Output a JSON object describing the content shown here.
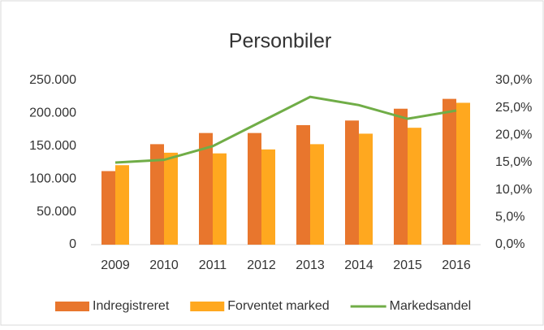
{
  "chart_data": {
    "type": "bar",
    "title": "Personbiler",
    "categories": [
      "2009",
      "2010",
      "2011",
      "2012",
      "2013",
      "2014",
      "2015",
      "2016"
    ],
    "series": [
      {
        "name": "Indregistreret",
        "color": "#e8762d",
        "values": [
          112000,
          153000,
          170000,
          170000,
          182000,
          189000,
          207000,
          222000
        ]
      },
      {
        "name": "Forventet marked",
        "color": "#ffa81f",
        "values": [
          121000,
          140000,
          139000,
          145000,
          153000,
          169000,
          178000,
          216000
        ]
      },
      {
        "name": "Markedsandel",
        "type": "line",
        "axis": "y2",
        "color": "#70ad47",
        "values": [
          15,
          15.5,
          18,
          22.5,
          27,
          25.5,
          23,
          24.5
        ]
      }
    ],
    "ylim": [
      0,
      250000
    ],
    "yticks": [
      0,
      {
        "value": 50000,
        "label": "50.000"
      },
      {
        "value": 100000,
        "label": "100.000"
      },
      {
        "value": 150000,
        "label": "150.000"
      },
      {
        "value": 200000,
        "label": "200.000"
      },
      {
        "value": 250000,
        "label": "250.000"
      }
    ],
    "y2lim": [
      0,
      30
    ],
    "y2ticks": [
      {
        "value": 0,
        "label": "0,0%"
      },
      {
        "value": 5,
        "label": "5,0%"
      },
      {
        "value": 10,
        "label": "10,0%"
      },
      {
        "value": 15,
        "label": "15,0%"
      },
      {
        "value": 20,
        "label": "20,0%"
      },
      {
        "value": 25,
        "label": "25,0%"
      },
      {
        "value": 30,
        "label": "30,0%"
      }
    ],
    "grid": false,
    "legend": "bottom"
  }
}
